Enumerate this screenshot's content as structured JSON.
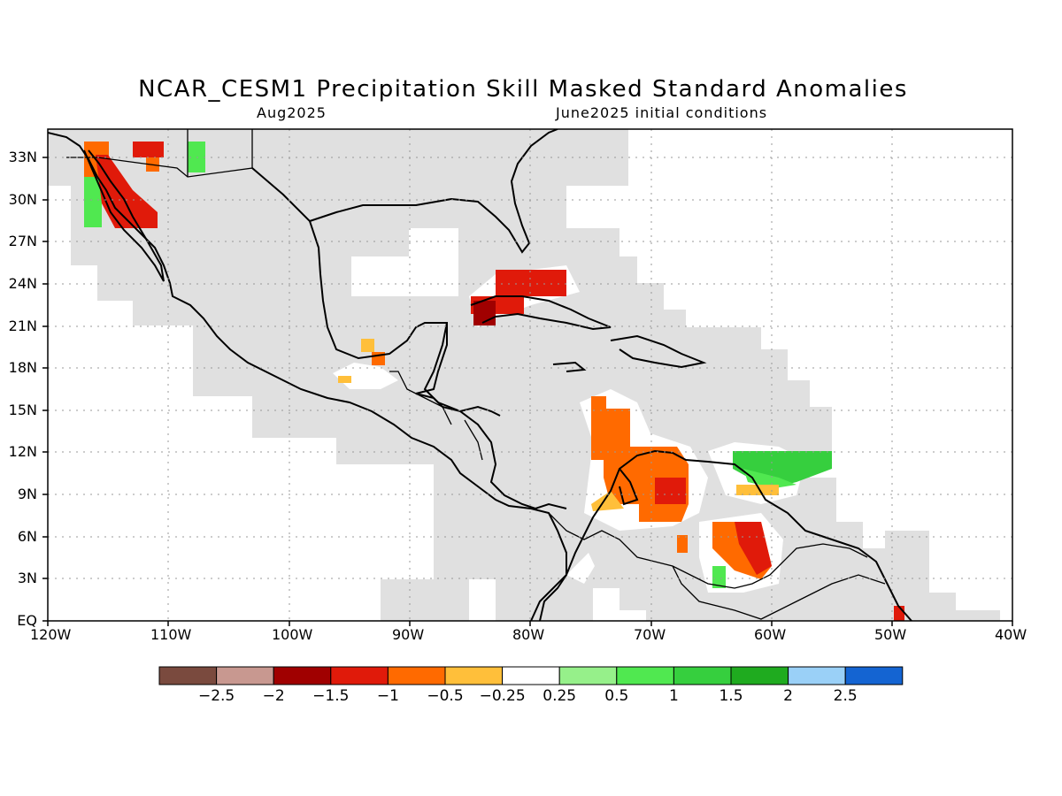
{
  "title": "NCAR_CESM1 Precipitation Skill Masked Standard Anomalies",
  "subtitle_left": "Aug2025",
  "subtitle_right": "June2025 initial conditions",
  "map": {
    "lon_range": [
      -120,
      -40
    ],
    "lat_range": [
      0,
      35
    ],
    "lon_labels": [
      "120W",
      "110W",
      "100W",
      "90W",
      "80W",
      "70W",
      "60W",
      "50W",
      "40W"
    ],
    "lat_labels": [
      "33N",
      "30N",
      "27N",
      "24N",
      "21N",
      "18N",
      "15N",
      "12N",
      "9N",
      "6N",
      "3N",
      "EQ"
    ],
    "mask_color": "#e0e0e0",
    "coastline_color": "#000000"
  },
  "colorbar": {
    "colors": [
      "#7a4a3e",
      "#c89890",
      "#a00000",
      "#e01a0a",
      "#ff6a00",
      "#ffbf3a",
      "#ffffff",
      "#96f08a",
      "#50e850",
      "#36cf3e",
      "#1fab1f",
      "#9ad0f7",
      "#1464d2"
    ],
    "labels": [
      "-2.5",
      "-2",
      "-1.5",
      "-1",
      "-0.5",
      "-0.25",
      "0.25",
      "0.5",
      "1",
      "1.5",
      "2",
      "2.5"
    ]
  }
}
